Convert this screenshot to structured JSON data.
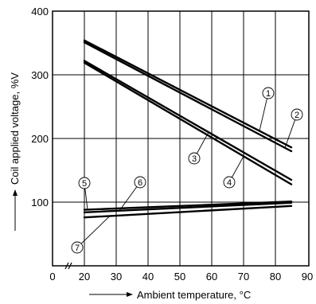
{
  "chart_data": {
    "type": "line",
    "xlabel": "Ambient temperature, °C",
    "ylabel": "Coil applied voltage, %V",
    "xlim": [
      0,
      90
    ],
    "ylim": [
      0,
      400
    ],
    "x_ticks": [
      0,
      20,
      30,
      40,
      50,
      60,
      70,
      80,
      90
    ],
    "y_ticks": [
      100,
      200,
      300,
      400
    ],
    "grid": true,
    "series": [
      {
        "name": "①",
        "x": [
          20,
          85
        ],
        "y": [
          354,
          186
        ]
      },
      {
        "name": "②",
        "x": [
          20,
          85
        ],
        "y": [
          351,
          180
        ]
      },
      {
        "name": "③",
        "x": [
          20,
          85
        ],
        "y": [
          322,
          135
        ]
      },
      {
        "name": "④",
        "x": [
          20,
          85
        ],
        "y": [
          319,
          128
        ]
      },
      {
        "name": "⑤",
        "x": [
          20,
          85
        ],
        "y": [
          88,
          101
        ]
      },
      {
        "name": "⑥",
        "x": [
          20,
          85
        ],
        "y": [
          84,
          99
        ]
      },
      {
        "name": "⑦",
        "x": [
          20,
          85
        ],
        "y": [
          76,
          94
        ]
      }
    ]
  }
}
